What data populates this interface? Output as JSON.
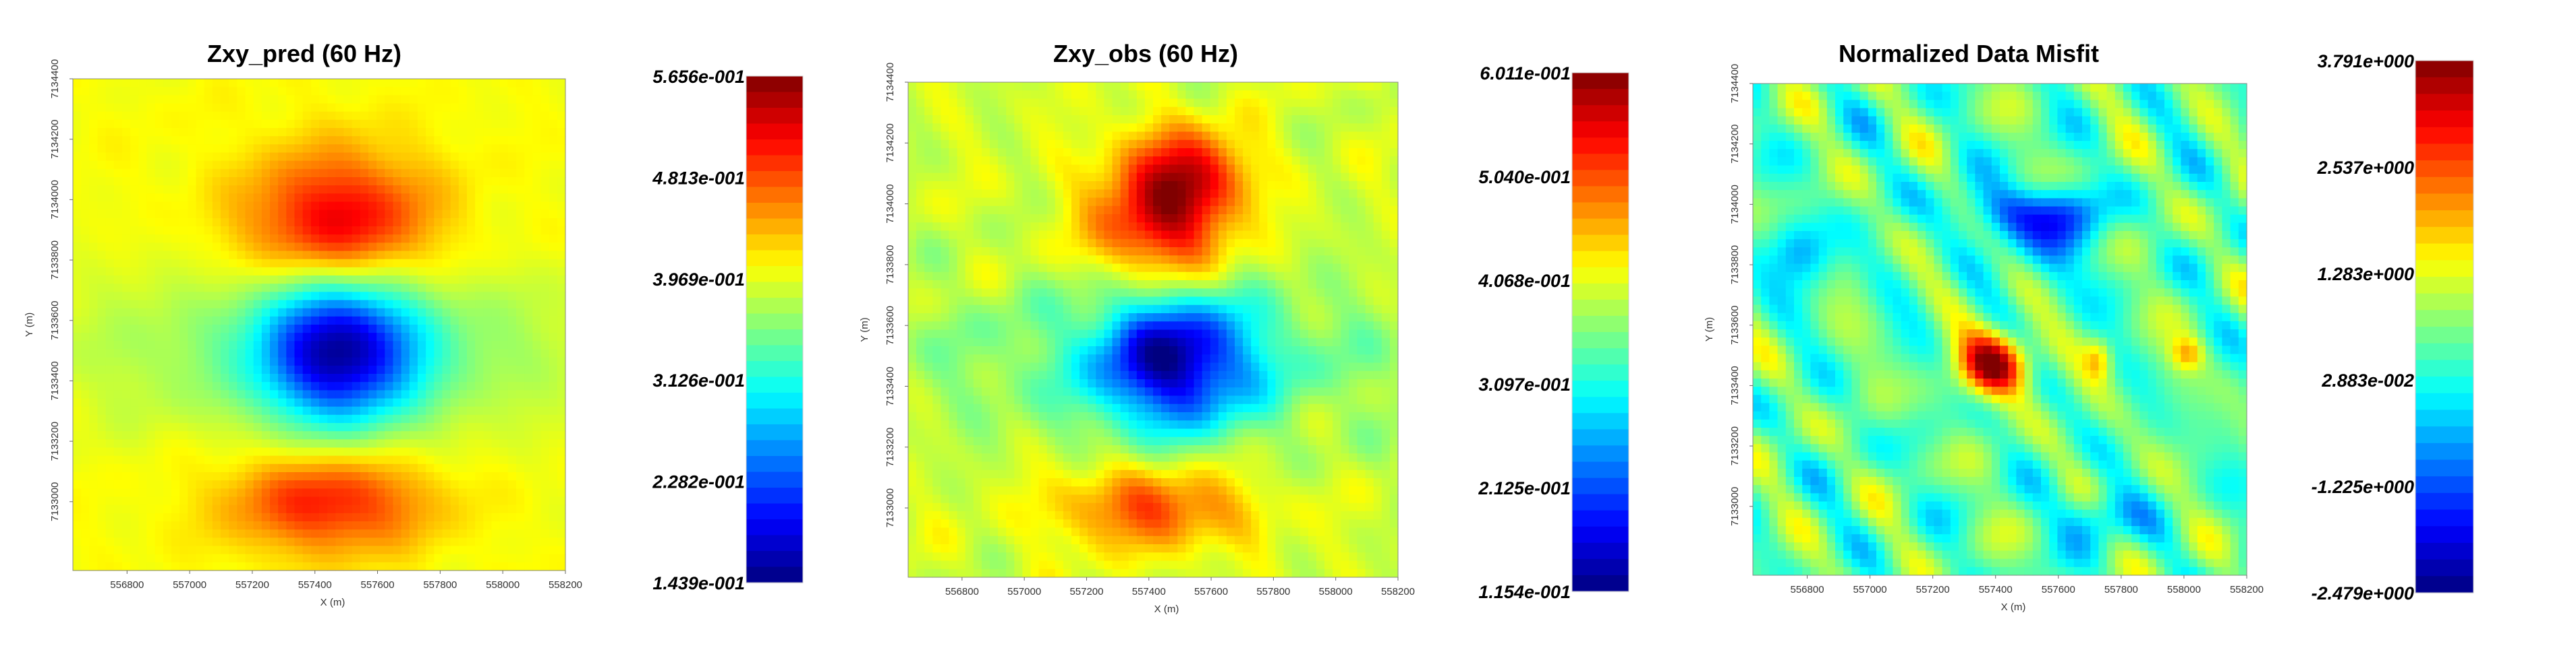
{
  "chart_data": [
    {
      "type": "heatmap",
      "title": "Zxy_pred (60 Hz)",
      "xlabel": "X (m)",
      "ylabel": "Y (m)",
      "x_ticks": [
        "556800",
        "557000",
        "557200",
        "557400",
        "557600",
        "557800",
        "558000",
        "558200"
      ],
      "y_ticks": [
        "7133000",
        "7133200",
        "7133400",
        "7133600",
        "7133800",
        "7134000",
        "7134200",
        "7134400"
      ],
      "colorbar_labels": [
        "5.656e-001",
        "4.813e-001",
        "3.969e-001",
        "3.126e-001",
        "2.282e-001",
        "1.439e-001"
      ],
      "colorbar_range": [
        0.1439,
        0.5656
      ]
    },
    {
      "type": "heatmap",
      "title": "Zxy_obs (60 Hz)",
      "xlabel": "X (m)",
      "ylabel": "Y (m)",
      "x_ticks": [
        "556800",
        "557000",
        "557200",
        "557400",
        "557600",
        "557800",
        "558000",
        "558200"
      ],
      "y_ticks": [
        "7133000",
        "7133200",
        "7133400",
        "7133600",
        "7133800",
        "7134000",
        "7134200",
        "7134400"
      ],
      "colorbar_labels": [
        "6.011e-001",
        "5.040e-001",
        "4.068e-001",
        "3.097e-001",
        "2.125e-001",
        "1.154e-001"
      ],
      "colorbar_range": [
        0.1154,
        0.6011
      ]
    },
    {
      "type": "heatmap",
      "title": "Normalized Data Misfit",
      "xlabel": "X (m)",
      "ylabel": "Y (m)",
      "x_ticks": [
        "556800",
        "557000",
        "557200",
        "557400",
        "557600",
        "557800",
        "558000",
        "558200"
      ],
      "y_ticks": [
        "7133000",
        "7133200",
        "7133400",
        "7133600",
        "7133800",
        "7134000",
        "7134200",
        "7134400"
      ],
      "colorbar_labels": [
        "3.791e+000",
        "2.537e+000",
        "1.283e+000",
        "2.883e-002",
        "-1.225e+000",
        "-2.479e+000"
      ],
      "colorbar_range": [
        -2.479,
        3.791
      ]
    }
  ]
}
